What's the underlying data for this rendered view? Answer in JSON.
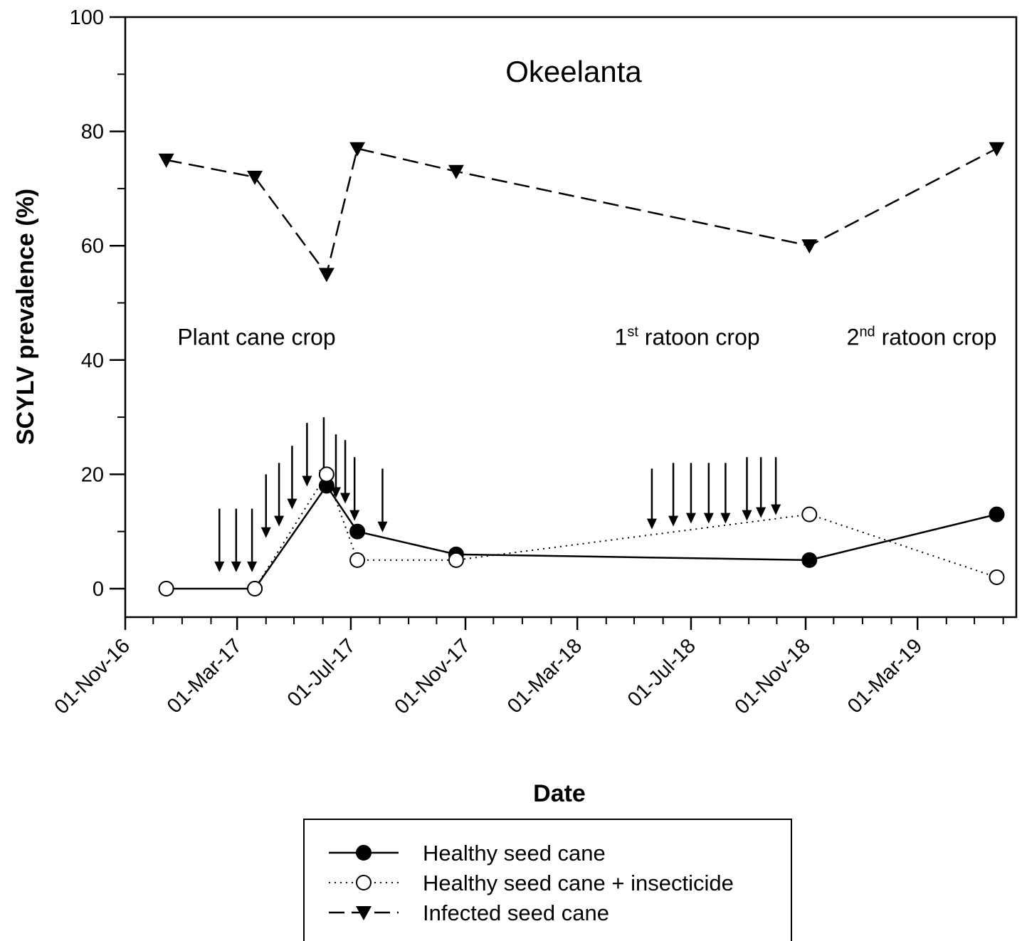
{
  "chart_data": {
    "type": "line",
    "title": "Okeelanta",
    "xlabel": "Date",
    "ylabel": "SCYLV prevalence (%)",
    "ylim": [
      0,
      100
    ],
    "yticks": [
      "0",
      "20",
      "40",
      "60",
      "80",
      "100"
    ],
    "xlim": [
      "2016-11-01",
      "2019-06-15"
    ],
    "xticks": [
      {
        "label": "01-Nov-16",
        "date": "2016-11-01"
      },
      {
        "label": "01-Mar-17",
        "date": "2017-03-01"
      },
      {
        "label": "01-Jul-17",
        "date": "2017-07-01"
      },
      {
        "label": "01-Nov-17",
        "date": "2017-11-01"
      },
      {
        "label": "01-Mar-18",
        "date": "2018-03-01"
      },
      {
        "label": "01-Jul-18",
        "date": "2018-07-01"
      },
      {
        "label": "01-Nov-18",
        "date": "2018-11-01"
      },
      {
        "label": "01-Mar-19",
        "date": "2019-03-01"
      }
    ],
    "series": [
      {
        "name": "Healthy seed cane",
        "marker": "filled-circle",
        "line": "solid",
        "points": [
          {
            "x": "2016-12-15",
            "y": 0
          },
          {
            "x": "2017-03-20",
            "y": 0
          },
          {
            "x": "2017-06-05",
            "y": 18
          },
          {
            "x": "2017-07-08",
            "y": 10
          },
          {
            "x": "2017-10-22",
            "y": 6
          },
          {
            "x": "2018-11-05",
            "y": 5
          },
          {
            "x": "2019-05-25",
            "y": 13
          }
        ]
      },
      {
        "name": "Healthy seed cane + insecticide",
        "marker": "open-circle",
        "line": "dotted",
        "points": [
          {
            "x": "2016-12-15",
            "y": 0
          },
          {
            "x": "2017-03-20",
            "y": 0
          },
          {
            "x": "2017-06-05",
            "y": 20
          },
          {
            "x": "2017-07-08",
            "y": 5
          },
          {
            "x": "2017-10-22",
            "y": 5
          },
          {
            "x": "2018-11-05",
            "y": 13
          },
          {
            "x": "2019-05-25",
            "y": 2
          }
        ]
      },
      {
        "name": "Infected seed cane",
        "marker": "filled-triangle-down",
        "line": "dashed",
        "points": [
          {
            "x": "2016-12-15",
            "y": 75
          },
          {
            "x": "2017-03-20",
            "y": 72
          },
          {
            "x": "2017-06-05",
            "y": 55
          },
          {
            "x": "2017-07-08",
            "y": 77
          },
          {
            "x": "2017-10-22",
            "y": 73
          },
          {
            "x": "2018-11-05",
            "y": 60
          },
          {
            "x": "2019-05-25",
            "y": 77
          }
        ]
      }
    ],
    "arrows": [
      {
        "x": "2017-02-10",
        "y_top": 14,
        "y_tip": 3
      },
      {
        "x": "2017-02-28",
        "y_top": 14,
        "y_tip": 3
      },
      {
        "x": "2017-03-17",
        "y_top": 14,
        "y_tip": 3
      },
      {
        "x": "2017-04-01",
        "y_top": 20,
        "y_tip": 9
      },
      {
        "x": "2017-04-15",
        "y_top": 22,
        "y_tip": 11
      },
      {
        "x": "2017-04-29",
        "y_top": 25,
        "y_tip": 14
      },
      {
        "x": "2017-05-15",
        "y_top": 29,
        "y_tip": 18
      },
      {
        "x": "2017-06-02",
        "y_top": 30,
        "y_tip": 19
      },
      {
        "x": "2017-06-15",
        "y_top": 27,
        "y_tip": 16
      },
      {
        "x": "2017-06-25",
        "y_top": 26,
        "y_tip": 15
      },
      {
        "x": "2017-07-05",
        "y_top": 23,
        "y_tip": 12
      },
      {
        "x": "2017-08-04",
        "y_top": 21,
        "y_tip": 10
      },
      {
        "x": "2018-05-20",
        "y_top": 21,
        "y_tip": 10.5
      },
      {
        "x": "2018-06-12",
        "y_top": 22,
        "y_tip": 11
      },
      {
        "x": "2018-07-01",
        "y_top": 22,
        "y_tip": 11.5
      },
      {
        "x": "2018-07-20",
        "y_top": 22,
        "y_tip": 11.5
      },
      {
        "x": "2018-08-07",
        "y_top": 22,
        "y_tip": 11.5
      },
      {
        "x": "2018-08-30",
        "y_top": 23,
        "y_tip": 12
      },
      {
        "x": "2018-09-14",
        "y_top": 23,
        "y_tip": 12.5
      },
      {
        "x": "2018-09-30",
        "y_top": 23,
        "y_tip": 13
      }
    ],
    "annotations": [
      {
        "text": "Plant cane crop",
        "sup": "",
        "after": "",
        "x": "2016-12-27",
        "y": 44
      },
      {
        "text": "1",
        "sup": "st",
        "after": " ratoon crop",
        "x": "2018-04-10",
        "y": 44
      },
      {
        "text": "2",
        "sup": "nd",
        "after": " ratoon crop",
        "x": "2018-12-15",
        "y": 44
      }
    ],
    "grid": false,
    "legend_position": "bottom-center"
  }
}
